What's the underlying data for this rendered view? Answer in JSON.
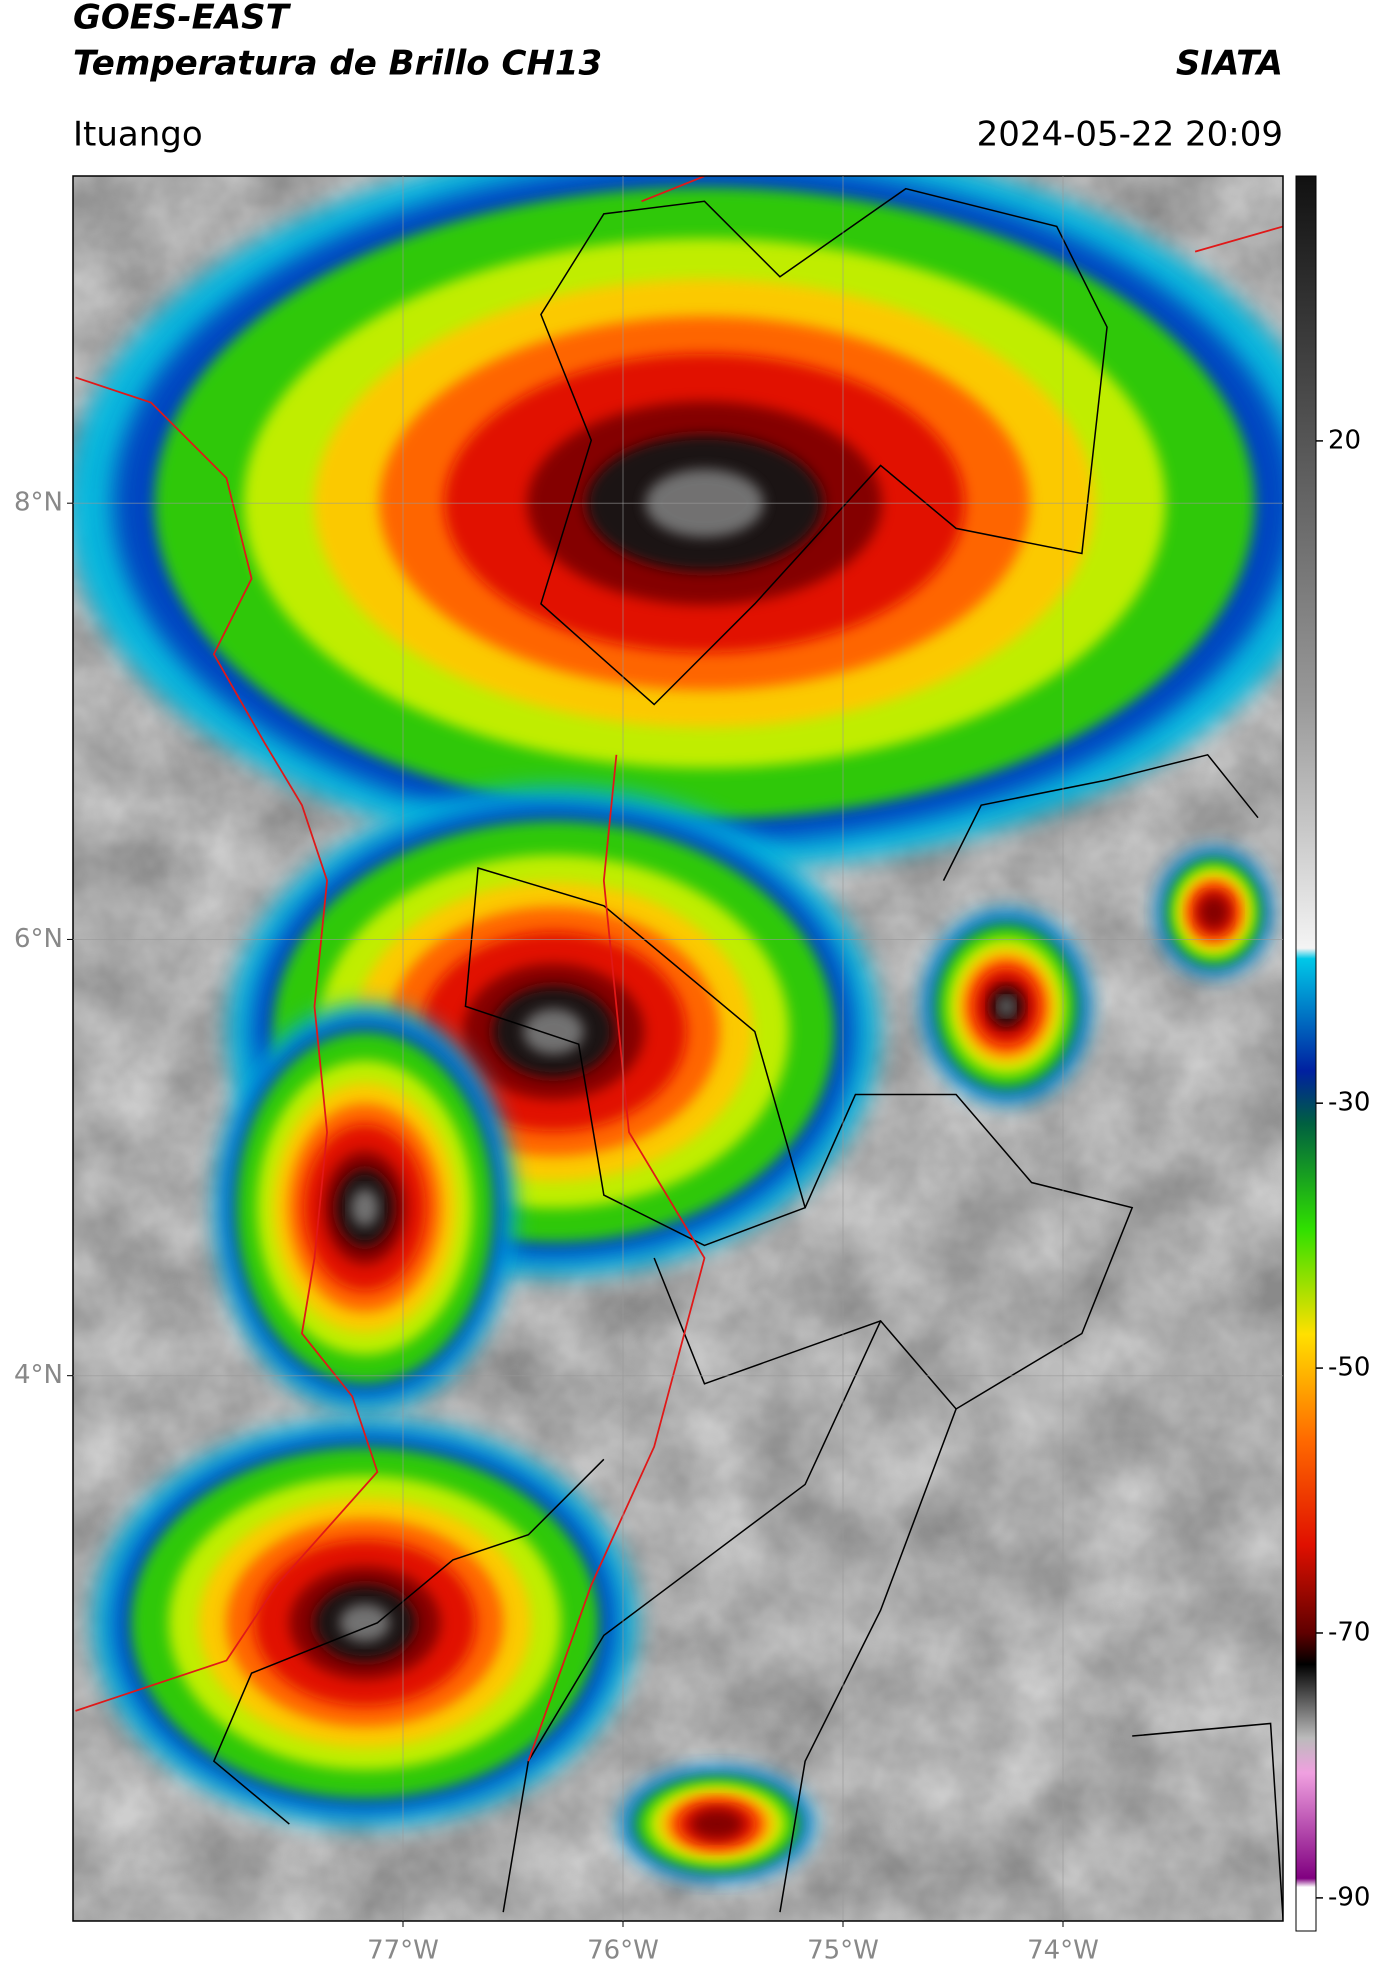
{
  "header": {
    "title": "GOES-EAST",
    "subtitle": "Temperatura de Brillo CH13",
    "source": "SIATA",
    "location": "Ituango",
    "datetime": "2024-05-22 20:09"
  },
  "map": {
    "xlim": [
      -78.5,
      -73
    ],
    "ylim": [
      1.5,
      9.5
    ],
    "xticks": [
      {
        "value": -77,
        "label": "77°W"
      },
      {
        "value": -76,
        "label": "76°W"
      },
      {
        "value": -75,
        "label": "75°W"
      },
      {
        "value": -74,
        "label": "74°W"
      }
    ],
    "yticks": [
      {
        "value": 4,
        "label": "4°N"
      },
      {
        "value": 6,
        "label": "6°N"
      },
      {
        "value": 8,
        "label": "8°N"
      }
    ],
    "grid": true
  },
  "colorbar": {
    "ylim": [
      -92.5,
      40
    ],
    "yticks": [
      -90,
      -70,
      -50,
      -30,
      20
    ]
  }
}
